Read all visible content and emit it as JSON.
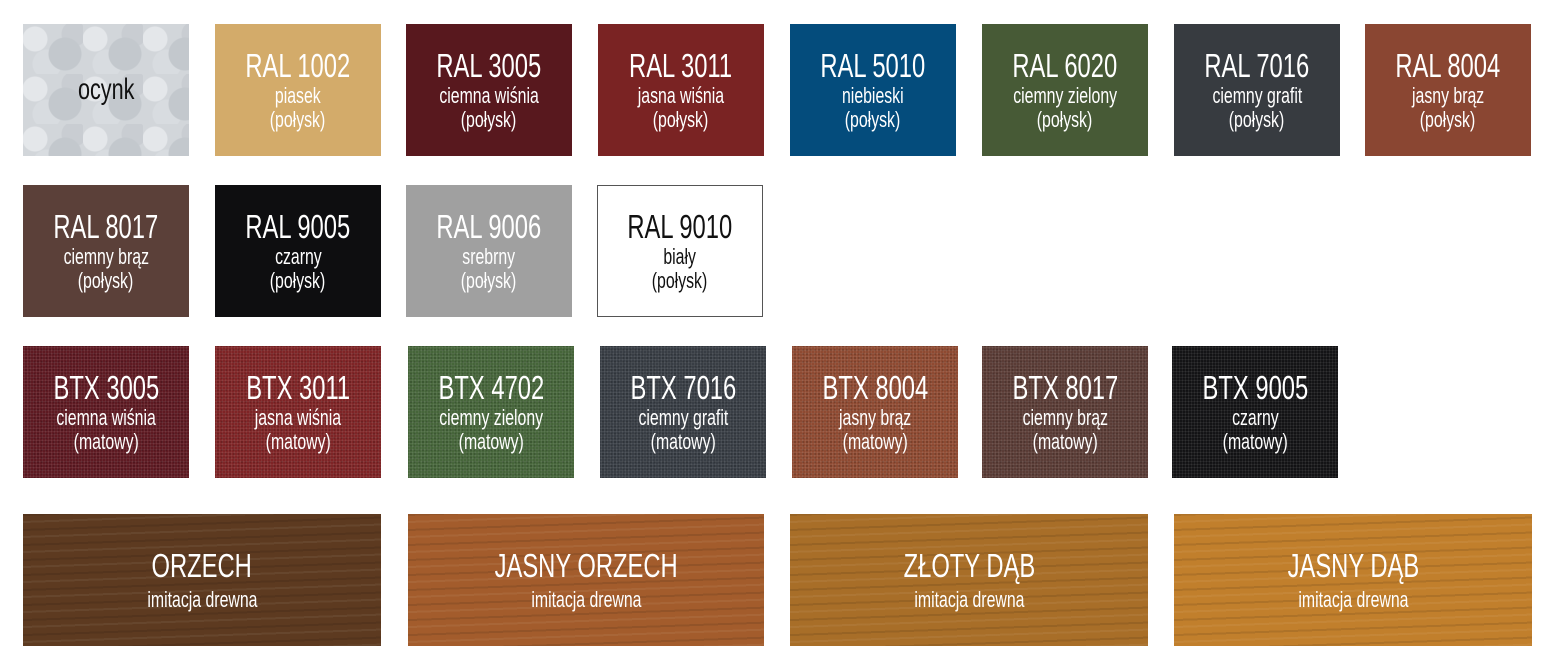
{
  "swatches": [
    {
      "code": "",
      "name": "ocynk",
      "finish": "",
      "color": "#d2d6da",
      "text_color": "#111111",
      "texture": "zinc"
    },
    {
      "code": "RAL 1002",
      "name": "piasek",
      "finish": "(połysk)",
      "color": "#d3ab6a"
    },
    {
      "code": "RAL 3005",
      "name": "ciemna wiśnia",
      "finish": "(połysk)",
      "color": "#58181e"
    },
    {
      "code": "RAL 3011",
      "name": "jasna wiśnia",
      "finish": "(połysk)",
      "color": "#7a2323"
    },
    {
      "code": "RAL 5010",
      "name": "niebieski",
      "finish": "(połysk)",
      "color": "#044c7c"
    },
    {
      "code": "RAL 6020",
      "name": "ciemny zielony",
      "finish": "(połysk)",
      "color": "#475a36"
    },
    {
      "code": "RAL 7016",
      "name": "ciemny grafit",
      "finish": "(połysk)",
      "color": "#373b40"
    },
    {
      "code": "RAL 8004",
      "name": "jasny brąz",
      "finish": "(połysk)",
      "color": "#8a4632"
    },
    {
      "code": "RAL 8017",
      "name": "ciemny brąz",
      "finish": "(połysk)",
      "color": "#5b4039"
    },
    {
      "code": "RAL 9005",
      "name": "czarny",
      "finish": "(połysk)",
      "color": "#0e0e10"
    },
    {
      "code": "RAL 9006",
      "name": "srebrny",
      "finish": "(połysk)",
      "color": "#a0a0a0"
    },
    {
      "code": "RAL 9010",
      "name": "biały",
      "finish": "(połysk)",
      "color": "#ffffff",
      "text_color": "#111111",
      "border": "#555555"
    },
    {
      "code": "BTX 3005",
      "name": "ciemna wiśnia",
      "finish": "(matowy)",
      "color": "#5e1a22",
      "texture": "btx"
    },
    {
      "code": "BTX 3011",
      "name": "jasna wiśnia",
      "finish": "(matowy)",
      "color": "#7e2426",
      "texture": "btx"
    },
    {
      "code": "BTX 4702",
      "name": "ciemny zielony",
      "finish": "(matowy)",
      "color": "#46653a",
      "texture": "btx"
    },
    {
      "code": "BTX 7016",
      "name": "ciemny grafit",
      "finish": "(matowy)",
      "color": "#383d44",
      "texture": "btx"
    },
    {
      "code": "BTX 8004",
      "name": "jasny brąz",
      "finish": "(matowy)",
      "color": "#8e4a32",
      "texture": "btx"
    },
    {
      "code": "BTX 8017",
      "name": "ciemny brąz",
      "finish": "(matowy)",
      "color": "#5a3c36",
      "texture": "btx"
    },
    {
      "code": "BTX 9005",
      "name": "czarny",
      "finish": "(matowy)",
      "color": "#141416",
      "texture": "btx"
    },
    {
      "code": "ORZECH",
      "name": "imitacja drewna",
      "finish": "",
      "color": "#5d3a20",
      "texture": "wood"
    },
    {
      "code": "JASNY ORZECH",
      "name": "imitacja drewna",
      "finish": "",
      "color": "#a35c2c",
      "texture": "wood"
    },
    {
      "code": "ZŁOTY DĄB",
      "name": "imitacja drewna",
      "finish": "",
      "color": "#a86e28",
      "texture": "wood"
    },
    {
      "code": "JASNY DĄB",
      "name": "imitacja drewna",
      "finish": "",
      "color": "#c17f2c",
      "texture": "wood"
    }
  ]
}
